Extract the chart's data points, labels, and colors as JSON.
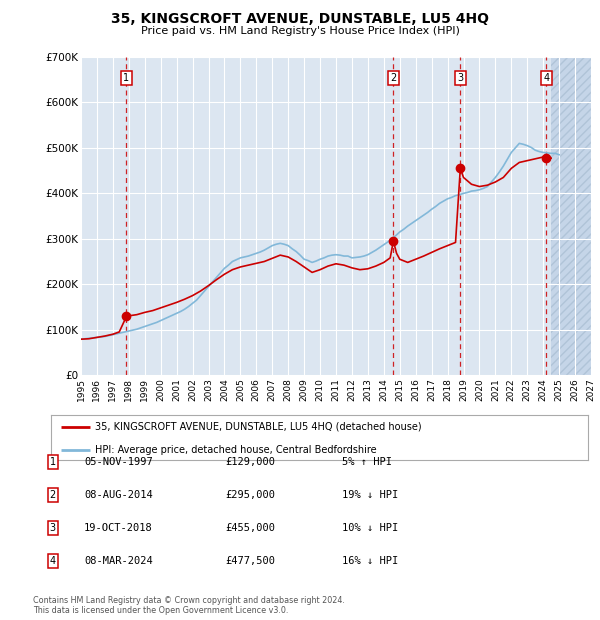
{
  "title": "35, KINGSCROFT AVENUE, DUNSTABLE, LU5 4HQ",
  "subtitle": "Price paid vs. HM Land Registry's House Price Index (HPI)",
  "legend_label_red": "35, KINGSCROFT AVENUE, DUNSTABLE, LU5 4HQ (detached house)",
  "legend_label_blue": "HPI: Average price, detached house, Central Bedfordshire",
  "footer": "Contains HM Land Registry data © Crown copyright and database right 2024.\nThis data is licensed under the Open Government Licence v3.0.",
  "transactions": [
    {
      "num": 1,
      "date": "05-NOV-1997",
      "price": 129000,
      "pct": "5%",
      "dir": "↑",
      "year_x": 1997.85
    },
    {
      "num": 2,
      "date": "08-AUG-2014",
      "price": 295000,
      "pct": "19%",
      "dir": "↓",
      "year_x": 2014.6
    },
    {
      "num": 3,
      "date": "19-OCT-2018",
      "price": 455000,
      "pct": "10%",
      "dir": "↓",
      "year_x": 2018.8
    },
    {
      "num": 4,
      "date": "08-MAR-2024",
      "price": 477500,
      "pct": "16%",
      "dir": "↓",
      "year_x": 2024.2
    }
  ],
  "hpi_years": [
    1995,
    1995.25,
    1995.5,
    1995.75,
    1996,
    1996.25,
    1996.5,
    1996.75,
    1997,
    1997.25,
    1997.5,
    1997.75,
    1998,
    1998.25,
    1998.5,
    1998.75,
    1999,
    1999.25,
    1999.5,
    1999.75,
    2000,
    2000.25,
    2000.5,
    2000.75,
    2001,
    2001.25,
    2001.5,
    2001.75,
    2002,
    2002.25,
    2002.5,
    2002.75,
    2003,
    2003.25,
    2003.5,
    2003.75,
    2004,
    2004.25,
    2004.5,
    2004.75,
    2005,
    2005.25,
    2005.5,
    2005.75,
    2006,
    2006.25,
    2006.5,
    2006.75,
    2007,
    2007.25,
    2007.5,
    2007.75,
    2008,
    2008.25,
    2008.5,
    2008.75,
    2009,
    2009.25,
    2009.5,
    2009.75,
    2010,
    2010.25,
    2010.5,
    2010.75,
    2011,
    2011.25,
    2011.5,
    2011.75,
    2012,
    2012.25,
    2012.5,
    2012.75,
    2013,
    2013.25,
    2013.5,
    2013.75,
    2014,
    2014.25,
    2014.5,
    2014.75,
    2015,
    2015.25,
    2015.5,
    2015.75,
    2016,
    2016.25,
    2016.5,
    2016.75,
    2017,
    2017.25,
    2017.5,
    2017.75,
    2018,
    2018.25,
    2018.5,
    2018.75,
    2019,
    2019.25,
    2019.5,
    2019.75,
    2020,
    2020.25,
    2020.5,
    2020.75,
    2021,
    2021.25,
    2021.5,
    2021.75,
    2022,
    2022.25,
    2022.5,
    2022.75,
    2023,
    2023.25,
    2023.5,
    2023.75,
    2024,
    2024.25,
    2024.5,
    2024.75,
    2025
  ],
  "hpi_values": [
    79000,
    80000,
    81000,
    82000,
    83000,
    84000,
    85000,
    87000,
    89000,
    91000,
    93000,
    95000,
    97000,
    99000,
    101000,
    104000,
    107000,
    110000,
    113000,
    116000,
    120000,
    124000,
    128000,
    132000,
    136000,
    140000,
    145000,
    151000,
    158000,
    165000,
    175000,
    185000,
    195000,
    205000,
    215000,
    225000,
    235000,
    242000,
    250000,
    254000,
    258000,
    260000,
    262000,
    265000,
    268000,
    271000,
    275000,
    280000,
    285000,
    288000,
    290000,
    288000,
    285000,
    278000,
    272000,
    264000,
    255000,
    252000,
    248000,
    251000,
    255000,
    258000,
    262000,
    264000,
    265000,
    264000,
    262000,
    262000,
    258000,
    259000,
    260000,
    262000,
    265000,
    270000,
    275000,
    281000,
    287000,
    293000,
    300000,
    307000,
    315000,
    321000,
    328000,
    334000,
    340000,
    346000,
    352000,
    358000,
    365000,
    371000,
    378000,
    383000,
    388000,
    391000,
    395000,
    397000,
    400000,
    402000,
    405000,
    406000,
    408000,
    411000,
    415000,
    425000,
    435000,
    447000,
    460000,
    475000,
    490000,
    500000,
    510000,
    508000,
    505000,
    501000,
    495000,
    492000,
    490000,
    489000,
    488000,
    488000,
    485000
  ],
  "red_line_years": [
    1995,
    1995.5,
    1996,
    1996.5,
    1997,
    1997.4,
    1997.85,
    1998.1,
    1998.5,
    1999,
    1999.5,
    2000,
    2000.5,
    2001,
    2001.5,
    2002,
    2002.5,
    2003,
    2003.5,
    2004,
    2004.5,
    2005,
    2005.5,
    2006,
    2006.5,
    2007,
    2007.5,
    2008,
    2008.5,
    2009,
    2009.5,
    2010,
    2010.5,
    2011,
    2011.5,
    2012,
    2012.5,
    2013,
    2013.5,
    2014,
    2014.4,
    2014.6,
    2014.8,
    2015,
    2015.5,
    2016,
    2016.5,
    2017,
    2017.5,
    2018,
    2018.5,
    2018.8,
    2019,
    2019.5,
    2020,
    2020.5,
    2021,
    2021.5,
    2022,
    2022.5,
    2023,
    2023.5,
    2024,
    2024.2,
    2024.5
  ],
  "red_line_values": [
    79000,
    80000,
    83000,
    86000,
    90000,
    95000,
    129000,
    131000,
    133000,
    138000,
    142000,
    148000,
    154000,
    160000,
    167000,
    175000,
    185000,
    197000,
    210000,
    222000,
    232000,
    238000,
    242000,
    246000,
    250000,
    257000,
    264000,
    260000,
    250000,
    238000,
    226000,
    232000,
    240000,
    245000,
    242000,
    236000,
    232000,
    234000,
    240000,
    248000,
    258000,
    295000,
    268000,
    255000,
    248000,
    255000,
    262000,
    270000,
    278000,
    285000,
    292000,
    455000,
    435000,
    420000,
    415000,
    418000,
    425000,
    435000,
    455000,
    468000,
    472000,
    476000,
    480000,
    477500,
    477500
  ],
  "xlim": [
    1995,
    2027
  ],
  "ylim": [
    0,
    700000
  ],
  "yticks": [
    0,
    100000,
    200000,
    300000,
    400000,
    500000,
    600000,
    700000
  ],
  "ytick_labels": [
    "£0",
    "£100K",
    "£200K",
    "£300K",
    "£400K",
    "£500K",
    "£600K",
    "£700K"
  ],
  "xticks": [
    1995,
    1996,
    1997,
    1998,
    1999,
    2000,
    2001,
    2002,
    2003,
    2004,
    2005,
    2006,
    2007,
    2008,
    2009,
    2010,
    2011,
    2012,
    2013,
    2014,
    2015,
    2016,
    2017,
    2018,
    2019,
    2020,
    2021,
    2022,
    2023,
    2024,
    2025,
    2026,
    2027
  ],
  "bg_color": "#dce6f1",
  "hatch_color": "#c5d5e8",
  "future_start": 2024.5,
  "grid_color": "#ffffff",
  "red_color": "#cc0000",
  "blue_color": "#82b8d9"
}
